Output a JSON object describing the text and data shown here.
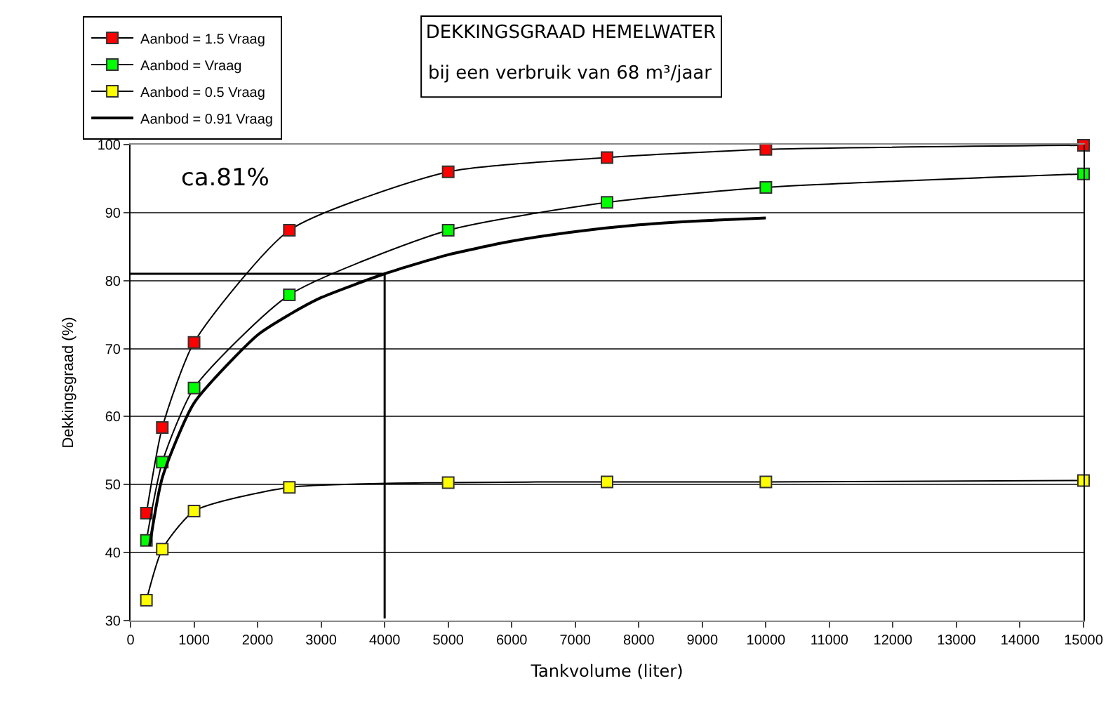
{
  "chart_data": {
    "type": "line",
    "title": "DEKKINGSGRAAD HEMELWATER",
    "subtitle": "bij een verbruik van 68 m³/jaar",
    "xlabel": "Tankvolume (liter)",
    "ylabel": "Dekkingsgraad (%)",
    "x": [
      250,
      500,
      1000,
      2500,
      5000,
      7500,
      10000,
      15000
    ],
    "series": [
      {
        "name": "Aanbod = 1.5 Vraag",
        "color": "#ff0000",
        "values": [
          45.8,
          58.4,
          70.9,
          87.4,
          96.0,
          98.1,
          99.3,
          99.9
        ]
      },
      {
        "name": "Aanbod = Vraag",
        "color": "#00ff00",
        "values": [
          41.8,
          53.3,
          64.2,
          77.9,
          87.4,
          91.5,
          93.7,
          95.7
        ]
      },
      {
        "name": "Aanbod = 0.5 Vraag",
        "color": "#ffff00",
        "values": [
          33.0,
          40.5,
          46.1,
          49.6,
          50.3,
          50.4,
          50.4,
          50.6
        ]
      },
      {
        "name": "Aanbod = 0.91 Vraag",
        "color": "#000000",
        "marker": "none",
        "x": [
          300,
          500,
          1000,
          2000,
          2500,
          3000,
          4000,
          5000,
          6000,
          7000,
          8000,
          9000,
          10000
        ],
        "values": [
          41,
          51,
          62,
          72,
          75,
          77.5,
          81,
          83.8,
          85.8,
          87.2,
          88.2,
          88.8,
          89.2
        ]
      }
    ],
    "annotations": [
      "ca.81%"
    ],
    "ref_lines": [
      {
        "axis": "x",
        "value": 4000
      },
      {
        "axis": "y",
        "value": 81
      }
    ],
    "xlim": [
      0,
      15000
    ],
    "xticks": [
      0,
      1000,
      2000,
      3000,
      4000,
      5000,
      6000,
      7000,
      8000,
      9000,
      10000,
      11000,
      12000,
      13000,
      14000,
      15000
    ],
    "ylim": [
      30,
      100
    ],
    "yticks": [
      30,
      40,
      50,
      60,
      70,
      80,
      90,
      100
    ],
    "grid": "y",
    "legend": "top left",
    "marker": "square",
    "line_style": "solid"
  }
}
